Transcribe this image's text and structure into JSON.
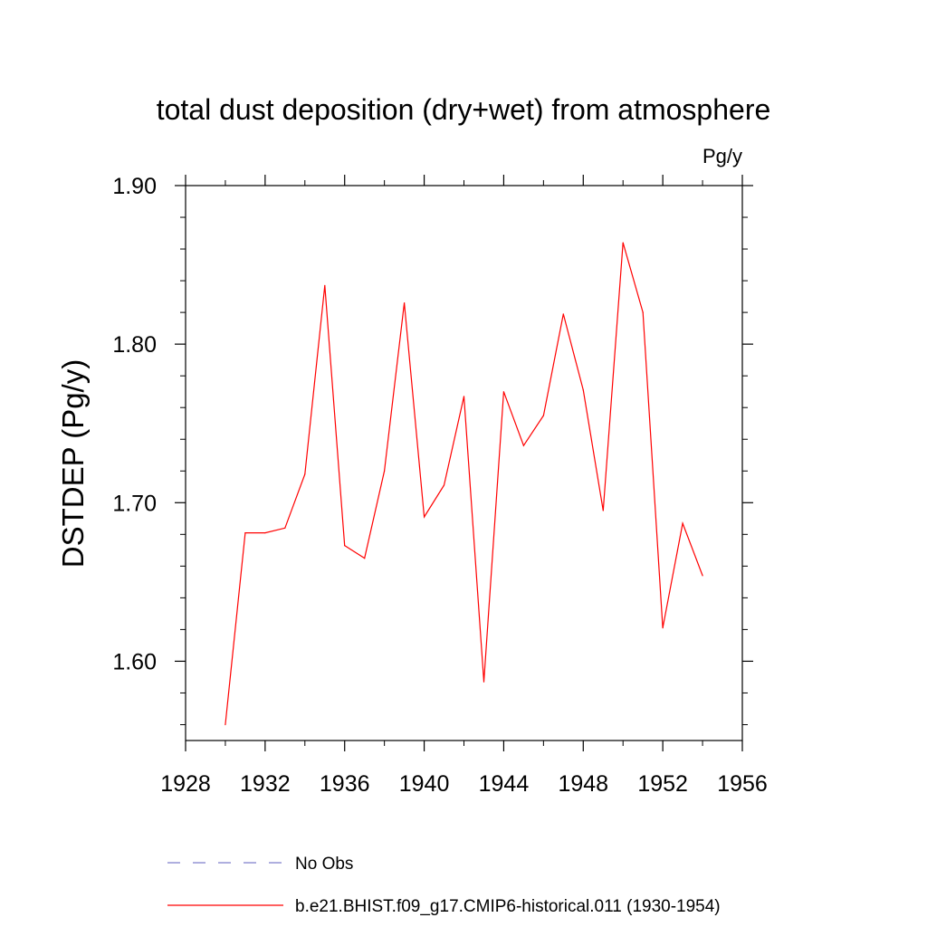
{
  "chart_data": {
    "type": "line",
    "title": "total dust deposition (dry+wet) from atmosphere",
    "units": "Pg/y",
    "ylabel": "DSTDEP  (Pg/y)",
    "xlabel": "",
    "xlim": [
      1928,
      1956
    ],
    "ylim": [
      1.55,
      1.9
    ],
    "x_ticks": [
      1928,
      1932,
      1936,
      1940,
      1944,
      1948,
      1952,
      1956
    ],
    "x_tick_labels": [
      "1928",
      "1932",
      "1936",
      "1940",
      "1944",
      "1948",
      "1952",
      "1956"
    ],
    "y_ticks": [
      1.6,
      1.7,
      1.8,
      1.9
    ],
    "y_tick_labels": [
      "1.60",
      "1.70",
      "1.80",
      "1.90"
    ],
    "grid": false,
    "legend_position": "bottom",
    "series": [
      {
        "name": "b.e21.BHIST.f09_g17.CMIP6-historical.011 (1930-1954)",
        "color": "#ff0000",
        "style": "solid",
        "x": [
          1930,
          1931,
          1932,
          1933,
          1934,
          1935,
          1936,
          1937,
          1938,
          1939,
          1940,
          1941,
          1942,
          1943,
          1944,
          1945,
          1946,
          1947,
          1948,
          1949,
          1950,
          1951,
          1952,
          1953,
          1954
        ],
        "values": [
          1.56,
          1.681,
          1.681,
          1.684,
          1.718,
          1.837,
          1.673,
          1.665,
          1.72,
          1.826,
          1.691,
          1.711,
          1.767,
          1.587,
          1.77,
          1.736,
          1.755,
          1.819,
          1.771,
          1.695,
          1.864,
          1.82,
          1.621,
          1.687,
          1.654
        ]
      }
    ],
    "legend": [
      {
        "label": "No Obs",
        "color": "#7f7fcc",
        "style": "dashed"
      },
      {
        "label": "b.e21.BHIST.f09_g17.CMIP6-historical.011 (1930-1954)",
        "color": "#ff0000",
        "style": "solid"
      }
    ]
  }
}
